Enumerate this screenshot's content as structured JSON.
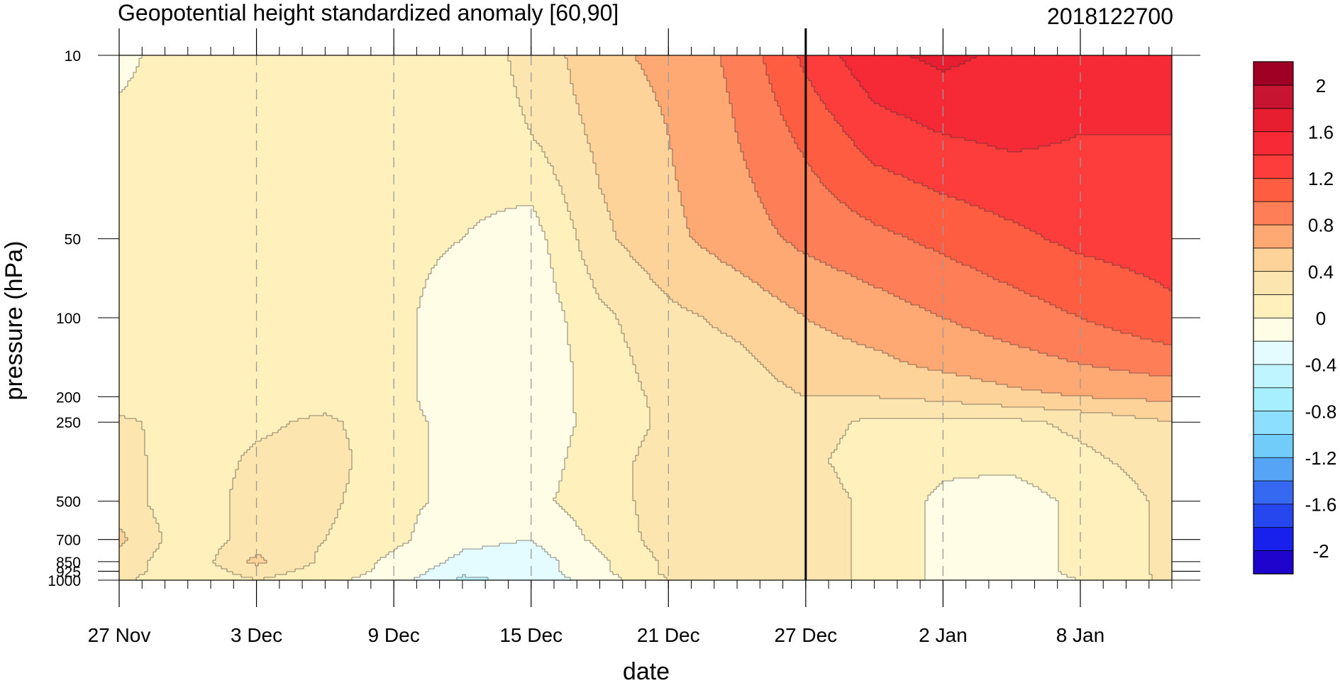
{
  "chart_data": {
    "type": "heatmap",
    "subtype": "filled-contour",
    "title": "Geopotential height standardized anomaly [60,90]",
    "date_stamp": "2018122700",
    "xlabel": "date",
    "ylabel": "pressure (hPa)",
    "x_range": [
      "2018-11-27",
      "2019-01-12"
    ],
    "x_ticks": [
      {
        "date": "2018-11-27",
        "label": "27 Nov"
      },
      {
        "date": "2018-12-03",
        "label": "3 Dec"
      },
      {
        "date": "2018-12-09",
        "label": "9 Dec"
      },
      {
        "date": "2018-12-15",
        "label": "15 Dec"
      },
      {
        "date": "2018-12-21",
        "label": "21 Dec"
      },
      {
        "date": "2018-12-27",
        "label": "27 Dec"
      },
      {
        "date": "2019-01-02",
        "label": "2 Jan"
      },
      {
        "date": "2019-01-08",
        "label": "8 Jan"
      }
    ],
    "y_scale": "log",
    "y_reversed": true,
    "y_range": [
      1000,
      10
    ],
    "y_ticks": [
      {
        "value": 10,
        "label": "10"
      },
      {
        "value": 50,
        "label": "50"
      },
      {
        "value": 100,
        "label": "100"
      },
      {
        "value": 200,
        "label": "200"
      },
      {
        "value": 250,
        "label": "250"
      },
      {
        "value": 500,
        "label": "500"
      },
      {
        "value": 700,
        "label": "700"
      },
      {
        "value": 850,
        "label": "850"
      },
      {
        "value": 925,
        "label": "925"
      },
      {
        "value": 1000,
        "label": "1000"
      }
    ],
    "reference_line": {
      "date": "2018-12-27",
      "color": "#000000"
    },
    "grid": "dashed vertical lines at labeled dates",
    "levels": [
      -2.2,
      -2.0,
      -1.8,
      -1.6,
      -1.4,
      -1.2,
      -1.0,
      -0.8,
      -0.6,
      -0.4,
      -0.2,
      0.0,
      0.2,
      0.4,
      0.6,
      0.8,
      1.0,
      1.2,
      1.4,
      1.6,
      1.8,
      2.0,
      2.2
    ],
    "colorbar_colors": [
      "#1e04cc",
      "#1721eb",
      "#2647ee",
      "#3569f1",
      "#55a4f6",
      "#72ccfa",
      "#8ddfff",
      "#a7eeff",
      "#bff5ff",
      "#e4fbff",
      "#fffde6",
      "#fff0bc",
      "#fde5b0",
      "#fed39a",
      "#fea874",
      "#fe7f57",
      "#fe5d42",
      "#fd3c3c",
      "#f62a36",
      "#e61e30",
      "#c71430",
      "#a00024"
    ],
    "colorbar_labels": [
      {
        "value": 2.0,
        "label": "2"
      },
      {
        "value": 1.6,
        "label": "1.6"
      },
      {
        "value": 1.2,
        "label": "1.2"
      },
      {
        "value": 0.8,
        "label": "0.8"
      },
      {
        "value": 0.4,
        "label": "0.4"
      },
      {
        "value": 0.0,
        "label": "0"
      },
      {
        "value": -0.4,
        "label": "-0.4"
      },
      {
        "value": -0.8,
        "label": "-0.8"
      },
      {
        "value": -1.2,
        "label": "-1.2"
      },
      {
        "value": -1.6,
        "label": "-1.6"
      },
      {
        "value": -2.0,
        "label": "-2"
      }
    ],
    "field": {
      "pressure": [
        10,
        20,
        50,
        100,
        150,
        200,
        250,
        350,
        500,
        700,
        850,
        925,
        1000
      ],
      "dates": [
        "2018-11-27",
        "2018-11-30",
        "2018-12-03",
        "2018-12-06",
        "2018-12-09",
        "2018-12-12",
        "2018-12-15",
        "2018-12-18",
        "2018-12-21",
        "2018-12-24",
        "2018-12-27",
        "2018-12-30",
        "2019-01-02",
        "2019-01-05",
        "2019-01-08",
        "2019-01-12"
      ],
      "values": [
        [
          -0.05,
          0.1,
          0.1,
          0.1,
          0.0,
          0.1,
          0.25,
          0.55,
          0.65,
          0.85,
          1.25,
          1.55,
          1.65,
          1.55,
          1.45,
          1.45
        ],
        [
          0.05,
          0.1,
          0.1,
          0.1,
          0.05,
          0.1,
          0.2,
          0.45,
          0.6,
          0.8,
          1.05,
          1.3,
          1.4,
          1.45,
          1.4,
          1.4
        ],
        [
          0.05,
          0.1,
          0.1,
          0.1,
          0.05,
          0.0,
          -0.1,
          0.35,
          0.55,
          0.7,
          0.85,
          0.95,
          1.05,
          1.15,
          1.25,
          1.3
        ],
        [
          0.05,
          0.1,
          0.1,
          0.1,
          0.05,
          -0.1,
          -0.15,
          0.15,
          0.35,
          0.45,
          0.6,
          0.7,
          0.8,
          0.9,
          1.0,
          1.15
        ],
        [
          0.05,
          0.1,
          0.1,
          0.1,
          0.05,
          -0.1,
          -0.15,
          0.1,
          0.3,
          0.35,
          0.5,
          0.55,
          0.65,
          0.72,
          0.8,
          0.9
        ],
        [
          0.05,
          0.1,
          0.1,
          0.1,
          0.05,
          -0.1,
          -0.15,
          0.1,
          0.25,
          0.3,
          0.4,
          0.4,
          0.45,
          0.55,
          0.6,
          0.65
        ],
        [
          0.25,
          0.1,
          0.15,
          0.25,
          0.05,
          -0.05,
          -0.1,
          0.05,
          0.25,
          0.2,
          0.3,
          0.15,
          0.15,
          0.15,
          0.25,
          0.4
        ],
        [
          0.3,
          0.05,
          0.25,
          0.3,
          0.05,
          -0.05,
          -0.1,
          0.1,
          0.3,
          0.2,
          0.25,
          0.1,
          0.05,
          0.05,
          0.15,
          0.3
        ],
        [
          0.3,
          0.05,
          0.3,
          0.25,
          0.05,
          -0.05,
          -0.05,
          0.1,
          0.3,
          0.25,
          0.3,
          0.15,
          -0.05,
          -0.1,
          0.05,
          0.25
        ],
        [
          0.45,
          0.05,
          0.3,
          0.2,
          0.05,
          -0.15,
          -0.2,
          0.05,
          0.3,
          0.25,
          0.3,
          0.15,
          -0.05,
          -0.1,
          0.05,
          0.25
        ],
        [
          0.3,
          0.05,
          0.45,
          0.15,
          -0.05,
          -0.25,
          -0.3,
          -0.05,
          0.25,
          0.25,
          0.3,
          0.15,
          -0.05,
          -0.1,
          0.05,
          0.25
        ],
        [
          0.3,
          0.05,
          0.3,
          0.1,
          -0.05,
          -0.35,
          -0.3,
          -0.05,
          0.25,
          0.25,
          0.3,
          0.15,
          -0.05,
          -0.1,
          0.05,
          0.25
        ],
        [
          0.25,
          0.0,
          0.2,
          0.05,
          -0.1,
          -0.45,
          -0.35,
          -0.1,
          0.2,
          0.25,
          0.3,
          0.15,
          -0.05,
          -0.1,
          0.0,
          0.25
        ]
      ]
    }
  }
}
